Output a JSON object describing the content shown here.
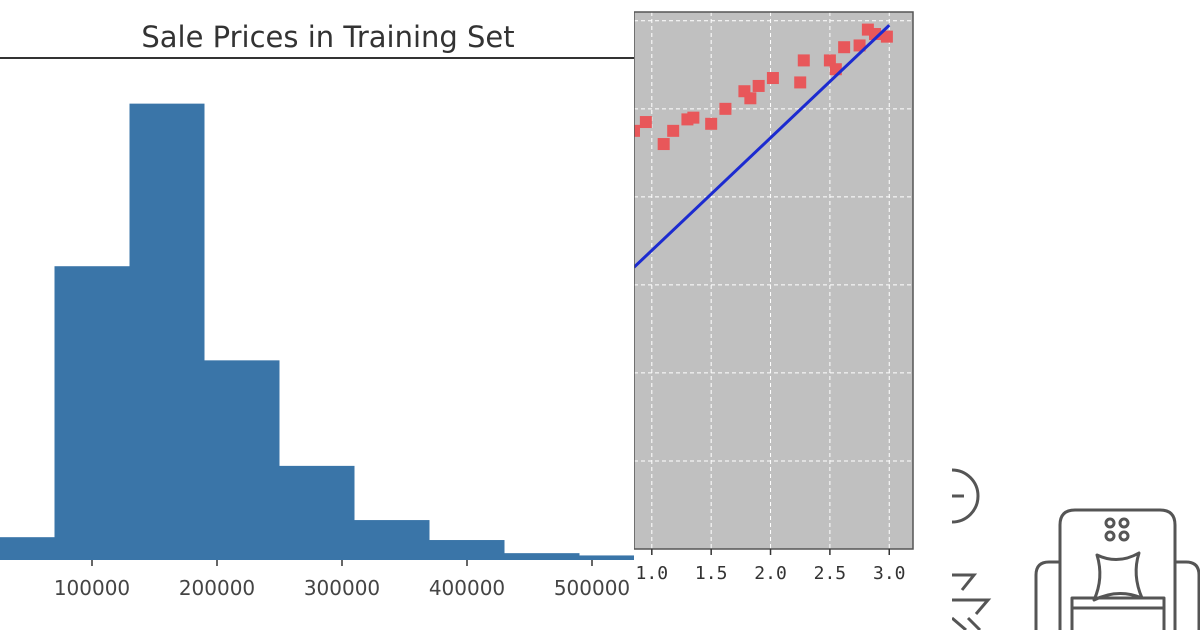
{
  "chart_data": [
    {
      "type": "bar",
      "title": "Sale Prices in Training Set",
      "xlabel": "",
      "ylabel": "",
      "bin_edges": [
        0,
        70000,
        130000,
        190000,
        250000,
        310000,
        370000,
        430000,
        490000,
        550000
      ],
      "values": [
        40,
        515,
        800,
        350,
        165,
        70,
        35,
        12,
        8
      ],
      "ylim": [
        0,
        880
      ],
      "x_ticks": [
        100000,
        200000,
        300000,
        400000,
        500000
      ],
      "x_tick_labels": [
        "100000",
        "200000",
        "300000",
        "400000",
        "500000"
      ],
      "color": "#3a75a8",
      "grid": false
    },
    {
      "type": "scatter",
      "title": "",
      "xlabel": "",
      "ylabel": "",
      "xlim": [
        0.85,
        3.2
      ],
      "ylim": [
        -3.0,
        3.1
      ],
      "x_ticks": [
        1.0,
        1.5,
        2.0,
        2.5,
        3.0
      ],
      "x_tick_labels": [
        "1.0",
        "1.5",
        "2.0",
        "2.5",
        "3.0"
      ],
      "grid": true,
      "background": "#c0c0c0",
      "points_color": "#e8575a",
      "line_color": "#1c2bd0",
      "series": [
        {
          "x": [
            0.85,
            0.95,
            1.1,
            1.18,
            1.3,
            1.35,
            1.5,
            1.62,
            1.78,
            1.83,
            1.9,
            2.02,
            2.25,
            2.28,
            2.5,
            2.55,
            2.62,
            2.75,
            2.82,
            2.88,
            2.98
          ],
          "y": [
            1.75,
            1.85,
            1.6,
            1.75,
            1.88,
            1.9,
            1.83,
            2.0,
            2.2,
            2.12,
            2.26,
            2.35,
            2.3,
            2.55,
            2.55,
            2.45,
            2.7,
            2.72,
            2.9,
            2.85,
            2.82
          ]
        },
        {
          "x": [
            0.85,
            3.0
          ],
          "y": [
            0.2,
            2.95
          ]
        }
      ]
    }
  ],
  "icons": {
    "clock": "clock-icon",
    "faucet": "faucet-icon",
    "armchair": "armchair-icon",
    "color": "#555555"
  }
}
